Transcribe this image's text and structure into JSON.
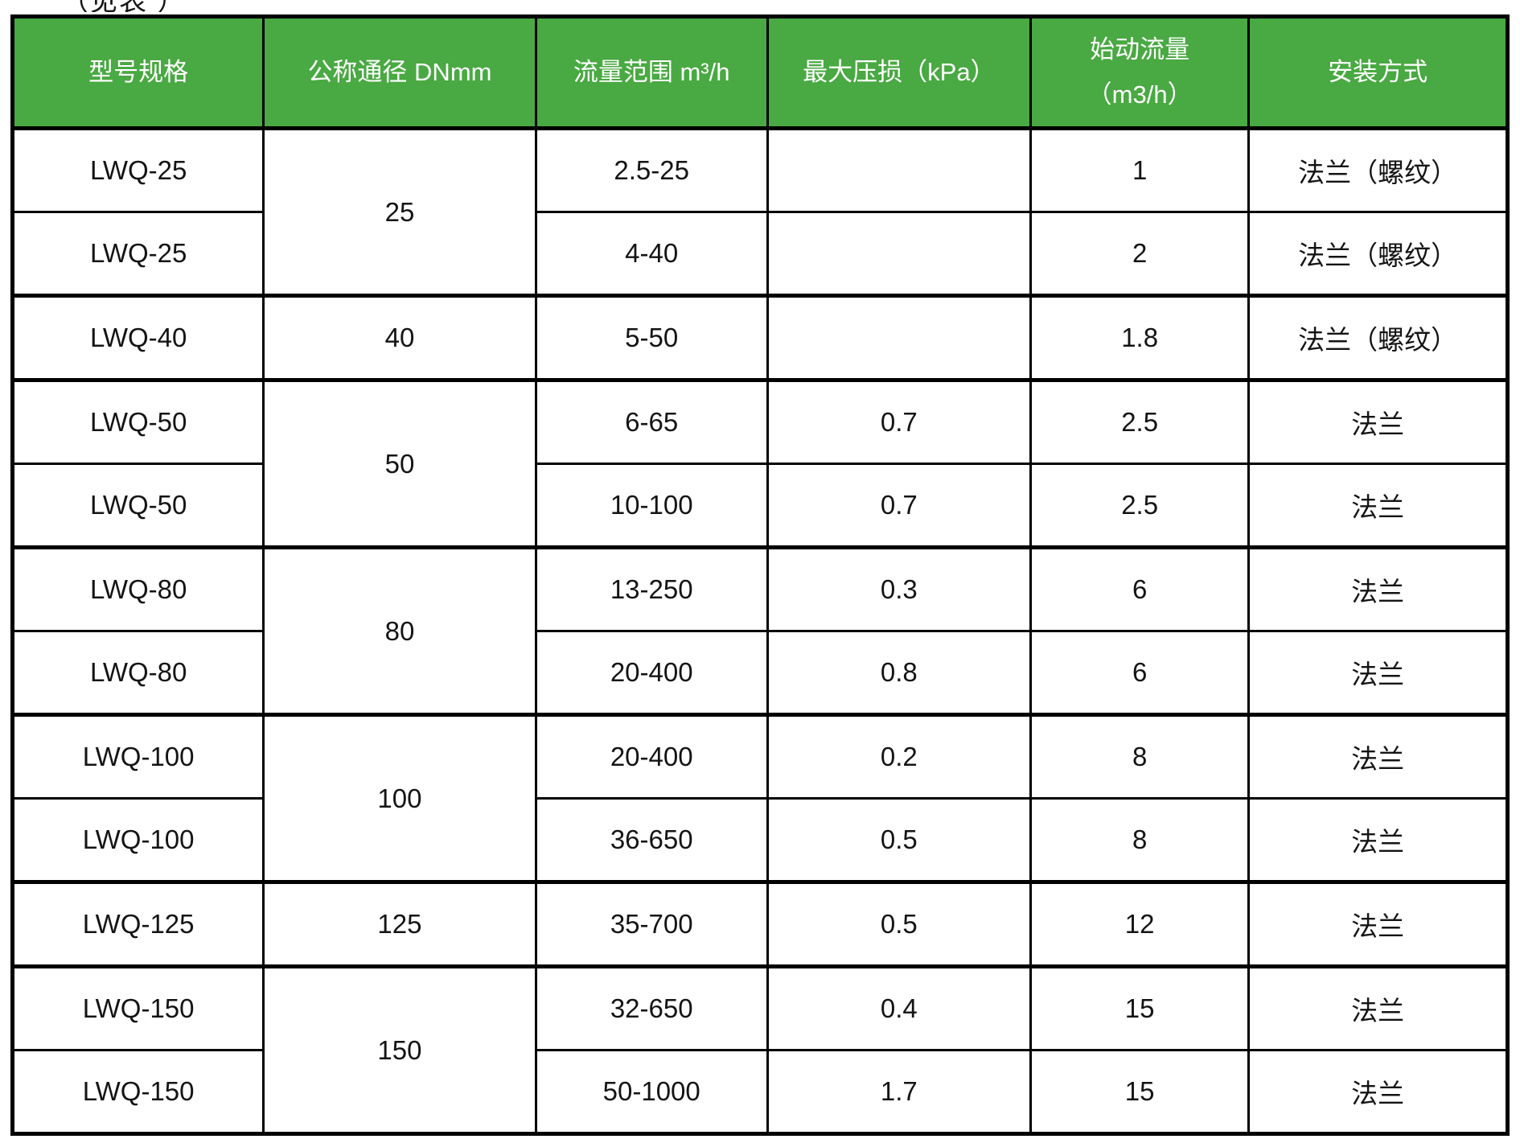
{
  "page": {
    "top_note": "（见表 ）"
  },
  "colors": {
    "header_bg": "#49a942",
    "header_text": "#ffffff",
    "border": "#000000"
  },
  "table": {
    "headers": [
      "型号规格",
      "公称通径 DNmm",
      "流量范围 m³/h",
      "最大压损（kPa）",
      "始动流量\n（m3/h）",
      "安装方式"
    ],
    "col_widths_percent": [
      16.8,
      18.2,
      15.5,
      17.6,
      14.6,
      17.3
    ],
    "rows": [
      {
        "model": "LWQ-25",
        "dn": "25",
        "dn_rows": 2,
        "flow": "2.5-25",
        "loss": "",
        "start": "1",
        "install": "法兰（螺纹）",
        "group_start": false
      },
      {
        "model": "LWQ-25",
        "dn": null,
        "dn_rows": 0,
        "flow": "4-40",
        "loss": "",
        "start": "2",
        "install": "法兰（螺纹）",
        "group_start": false
      },
      {
        "model": "LWQ-40",
        "dn": "40",
        "dn_rows": 1,
        "flow": "5-50",
        "loss": "",
        "start": "1.8",
        "install": "法兰（螺纹）",
        "group_start": true
      },
      {
        "model": "LWQ-50",
        "dn": "50",
        "dn_rows": 2,
        "flow": "6-65",
        "loss": "0.7",
        "start": "2.5",
        "install": "法兰",
        "group_start": true
      },
      {
        "model": "LWQ-50",
        "dn": null,
        "dn_rows": 0,
        "flow": "10-100",
        "loss": "0.7",
        "start": "2.5",
        "install": "法兰",
        "group_start": false
      },
      {
        "model": "LWQ-80",
        "dn": "80",
        "dn_rows": 2,
        "flow": "13-250",
        "loss": "0.3",
        "start": "6",
        "install": "法兰",
        "group_start": true
      },
      {
        "model": "LWQ-80",
        "dn": null,
        "dn_rows": 0,
        "flow": "20-400",
        "loss": "0.8",
        "start": "6",
        "install": "法兰",
        "group_start": false
      },
      {
        "model": "LWQ-100",
        "dn": "100",
        "dn_rows": 2,
        "flow": "20-400",
        "loss": "0.2",
        "start": "8",
        "install": "法兰",
        "group_start": true
      },
      {
        "model": "LWQ-100",
        "dn": null,
        "dn_rows": 0,
        "flow": "36-650",
        "loss": "0.5",
        "start": "8",
        "install": "法兰",
        "group_start": false
      },
      {
        "model": "LWQ-125",
        "dn": "125",
        "dn_rows": 1,
        "flow": "35-700",
        "loss": "0.5",
        "start": "12",
        "install": "法兰",
        "group_start": true
      },
      {
        "model": "LWQ-150",
        "dn": "150",
        "dn_rows": 2,
        "flow": "32-650",
        "loss": "0.4",
        "start": "15",
        "install": "法兰",
        "group_start": true
      },
      {
        "model": "LWQ-150",
        "dn": null,
        "dn_rows": 0,
        "flow": "50-1000",
        "loss": "1.7",
        "start": "15",
        "install": "法兰",
        "group_start": false
      }
    ]
  }
}
